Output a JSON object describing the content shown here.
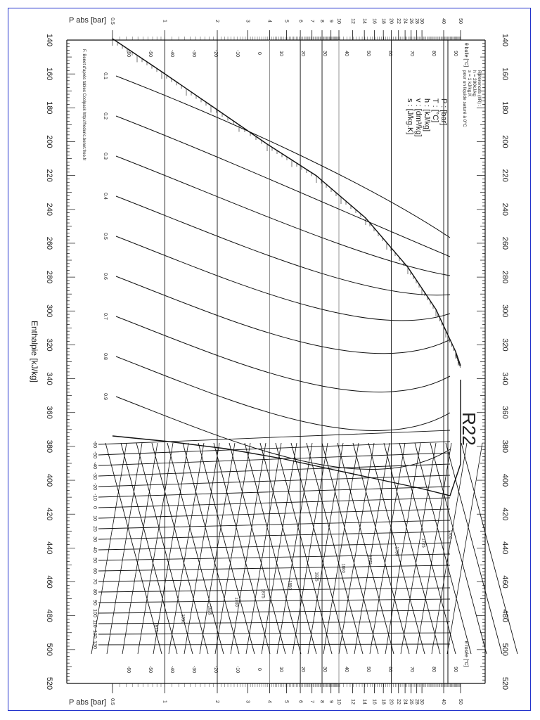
{
  "chart_data": {
    "type": "line",
    "title": "R22",
    "orientation": "rotated 90deg clockwise (enthalpy axis vertical, pressure axis horizontal)",
    "xlabel": "Enthalpie [kJ/kg]",
    "ylabel": "P abs [bar]",
    "enthalpy_axis": {
      "min": 140,
      "max": 520,
      "major_step": 20,
      "ticks": [
        140,
        160,
        180,
        200,
        220,
        240,
        260,
        280,
        300,
        320,
        340,
        360,
        380,
        400,
        420,
        440,
        460,
        480,
        500,
        520
      ]
    },
    "pressure_axis": {
      "scale": "log",
      "min": 0.5,
      "max": 50,
      "ticks": [
        0.5,
        1,
        2,
        3,
        4,
        5,
        6,
        7,
        8,
        9,
        10,
        12,
        14,
        16,
        18,
        20,
        22,
        24,
        26,
        28,
        30,
        40,
        50
      ]
    },
    "saturation_temps_C": [
      -60,
      -50,
      -40,
      -30,
      -20,
      -10,
      0,
      10,
      20,
      30,
      40,
      50,
      60,
      70,
      80,
      90
    ],
    "vapor_quality_lines": [
      0.1,
      0.2,
      0.3,
      0.4,
      0.5,
      0.6,
      0.7,
      0.8,
      0.9
    ],
    "liquid_side_labels": {
      "T": [
        -50,
        -40,
        -30,
        -20,
        -10,
        0,
        10,
        20,
        30,
        40,
        50,
        60,
        70,
        80,
        90
      ],
      "v_or_s": [
        0.8,
        0.9,
        1,
        1.1,
        1.2
      ]
    },
    "superheat_temperature_labels": [
      -60,
      -50,
      -40,
      -30,
      -20,
      -10,
      0,
      10,
      20,
      30,
      40,
      50,
      60,
      70,
      80,
      90,
      100,
      110,
      120,
      130
    ],
    "entropy_labels": [
      1700,
      1725,
      1750,
      1775,
      1800,
      1825,
      1850,
      1875,
      1900,
      1925,
      1950,
      1975,
      2000,
      2025,
      2050,
      2075,
      2100,
      2125,
      2150,
      2175,
      2200,
      2225,
      2250
    ],
    "volume_labels": [
      7.5,
      10,
      12.5,
      15,
      17.5,
      20,
      25,
      30,
      35,
      40,
      50,
      60,
      70,
      80,
      90,
      100,
      125,
      150,
      175,
      200,
      225,
      250,
      300,
      350,
      400,
      450,
      500
    ],
    "legend": [
      "P : [bar]",
      "T : [°C]",
      "h : [kJ/kg]",
      "v : [dm³/kg]",
      "s : [J/kg.K]"
    ],
    "references": [
      "Références (IIR) :",
      "h = 200kJ/kg",
      "s = 1 kJ/kg.K",
      "pour un liquide saturé à 0°C"
    ],
    "annotations": [
      "θ bulle [°C]",
      "θ rosée [°C]",
      "F. Benet d'après tables Coolpack http://frederic.benet.free.fr",
      "v = 6",
      "v = 1.2",
      "s = 1700"
    ]
  },
  "labels": {
    "pabs_top": "P abs [bar]",
    "pabs_bottom": "P abs [bar]",
    "enthalpy": "Enthalpie  [kJ/kg]",
    "title": "R22",
    "bulle": "θ bulle [°C]",
    "rosee": "θ rosée [°C]",
    "credit": "F. Benet d'après tables Coolpack http://frederic.benet.free.fr",
    "legend": [
      "P : [bar]",
      "T : [°C]",
      "h : [kJ/kg]",
      "v : [dm³/kg]",
      "s : [J/kg.K]"
    ],
    "refs": [
      "Références (IIR) :",
      "h = 200kJ/kg",
      "s = 1 kJ/kg.K",
      "pour un liquide saturé à 0°C"
    ]
  },
  "colors": {
    "frame": "#2233cc",
    "ink": "#111111",
    "grey": "#888888"
  }
}
